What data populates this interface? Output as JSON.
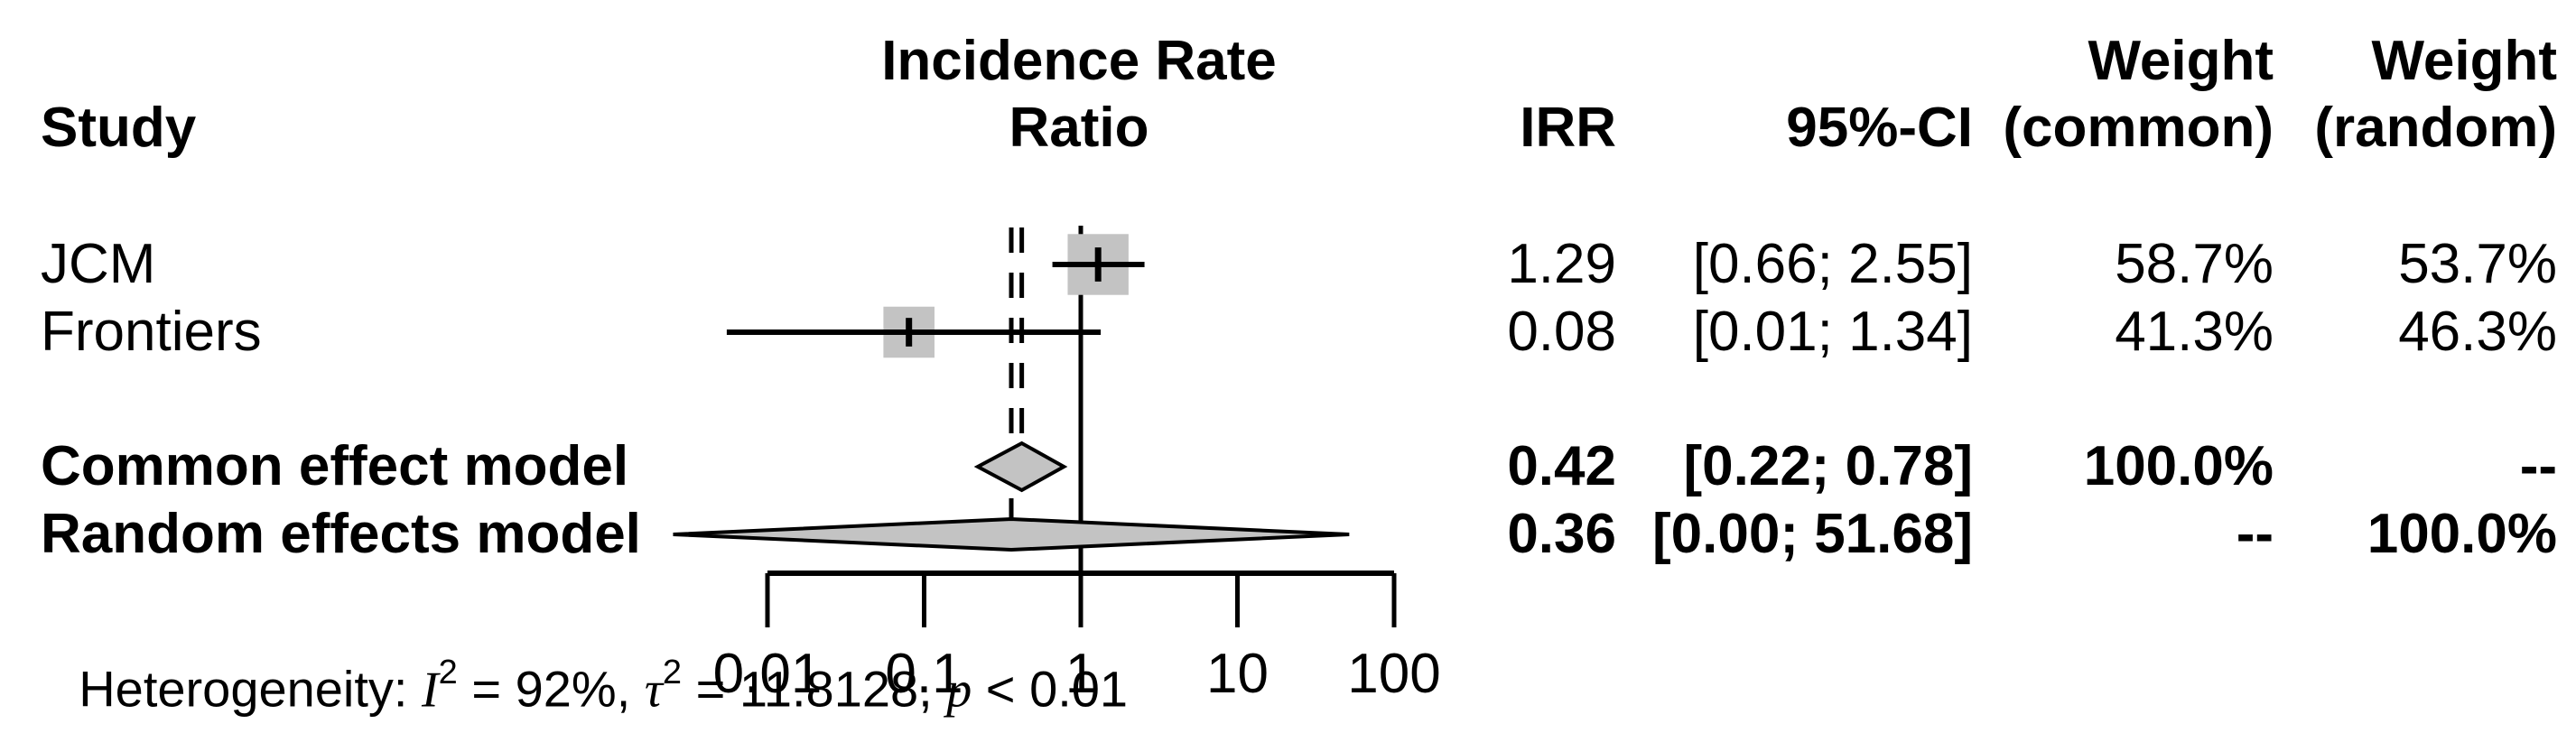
{
  "header": {
    "study": "Study",
    "plot_line1": "Incidence Rate",
    "plot_line2": "Ratio",
    "irr": "IRR",
    "ci": "95%-CI",
    "weight_common_line1": "Weight",
    "weight_common_line2": "(common)",
    "weight_random_line1": "Weight",
    "weight_random_line2": "(random)"
  },
  "rows": [
    {
      "study": "JCM",
      "irr": "1.29",
      "ci": "[0.66; 2.55]",
      "w_common": "58.7%",
      "w_random": "53.7%"
    },
    {
      "study": "Frontiers",
      "irr": "0.08",
      "ci": "[0.01; 1.34]",
      "w_common": "41.3%",
      "w_random": "46.3%"
    }
  ],
  "models": [
    {
      "label": "Common effect model",
      "irr": "0.42",
      "ci": "[0.22; 0.78]",
      "w_common": "100.0%",
      "w_random": "--"
    },
    {
      "label": "Random effects model",
      "irr": "0.36",
      "ci": "[0.00; 51.68]",
      "w_common": "--",
      "w_random": "100.0%"
    }
  ],
  "heterogeneity": {
    "prefix": "Heterogeneity: ",
    "i_symbol": "I",
    "i_sup": "2",
    "i_rest": " = 92%, ",
    "tau_symbol": "τ",
    "tau_sup": "2",
    "tau_rest": " = 11.8128, ",
    "p_symbol": "p",
    "p_rest": " < 0.01"
  },
  "chart_data": {
    "type": "forest",
    "x_scale": "log10",
    "x_ticks": [
      0.01,
      0.1,
      1,
      10,
      100
    ],
    "x_tick_labels": [
      "0.01",
      "0.1",
      "1",
      "10",
      "100"
    ],
    "x_range_drawn": [
      0.0025,
      100
    ],
    "reference_value": 1,
    "effect_measure": "Incidence Rate Ratio",
    "studies": [
      {
        "name": "JCM",
        "estimate": 1.29,
        "ci_lower": 0.66,
        "ci_upper": 2.55,
        "weight_common": 58.7,
        "weight_random": 53.7
      },
      {
        "name": "Frontiers",
        "estimate": 0.08,
        "ci_lower": 0.01,
        "ci_upper": 1.34,
        "ci_lower_drawn": 0.0055,
        "weight_common": 41.3,
        "weight_random": 46.3
      }
    ],
    "pooled": [
      {
        "name": "Common effect model",
        "estimate": 0.42,
        "ci_lower": 0.22,
        "ci_upper": 0.78,
        "weight_common": 100.0,
        "weight_random": null
      },
      {
        "name": "Random effects model",
        "estimate": 0.36,
        "ci_lower": 0.0,
        "ci_upper": 51.68,
        "ci_lower_drawn": 0.0025,
        "weight_common": null,
        "weight_random": 100.0
      }
    ],
    "heterogeneity_text": "Heterogeneity: I² = 92%, τ² = 11.8128, p < 0.01",
    "colors": {
      "marker_fill": "#c3c3c3",
      "line": "#000000",
      "text": "#000000"
    },
    "legend": "none",
    "grid": false
  }
}
